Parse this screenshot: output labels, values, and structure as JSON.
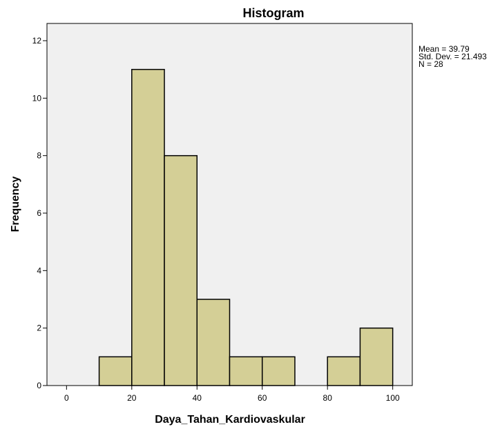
{
  "chart_data": {
    "type": "bar",
    "subtype": "histogram",
    "title": "Histogram",
    "xlabel": "Daya_Tahan_Kardiovaskular",
    "ylabel": "Frequency",
    "xlim": [
      -6,
      106
    ],
    "ylim": [
      0,
      12.6
    ],
    "xticks": [
      0,
      20,
      40,
      60,
      80,
      100
    ],
    "yticks": [
      0,
      2,
      4,
      6,
      8,
      10,
      12
    ],
    "bins": [
      {
        "start": 10,
        "end": 20,
        "count": 1
      },
      {
        "start": 20,
        "end": 30,
        "count": 11
      },
      {
        "start": 30,
        "end": 40,
        "count": 8
      },
      {
        "start": 40,
        "end": 50,
        "count": 3
      },
      {
        "start": 50,
        "end": 60,
        "count": 1
      },
      {
        "start": 60,
        "end": 70,
        "count": 1
      },
      {
        "start": 70,
        "end": 80,
        "count": 0
      },
      {
        "start": 80,
        "end": 90,
        "count": 1
      },
      {
        "start": 90,
        "end": 100,
        "count": 2
      }
    ],
    "statistics": [
      "Mean = 39.79",
      "Std. Dev. = 21.493",
      "N = 28"
    ],
    "colors": {
      "bar_fill": "#d4cf96",
      "bar_stroke": "#000000",
      "plot_background": "#f0f0f0"
    },
    "grid": false,
    "legend": "none"
  }
}
